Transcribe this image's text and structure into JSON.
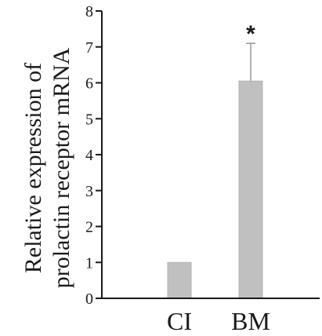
{
  "chart_data": {
    "type": "bar",
    "categories": [
      "CI",
      "BM"
    ],
    "values": [
      1.0,
      6.05
    ],
    "error_bars_upper": [
      0,
      1.05
    ],
    "significance": [
      "",
      "*"
    ],
    "ylabel": [
      "Relative expression of",
      "prolactin receptor mRNA"
    ],
    "xlabel": "",
    "ylim": [
      0,
      8
    ],
    "yticks": [
      "0",
      "1",
      "2",
      "3",
      "4",
      "5",
      "6",
      "7",
      "8"
    ],
    "grid": false,
    "bar_color": "#c0c0c0",
    "axis_color": "#1a1a1a"
  }
}
